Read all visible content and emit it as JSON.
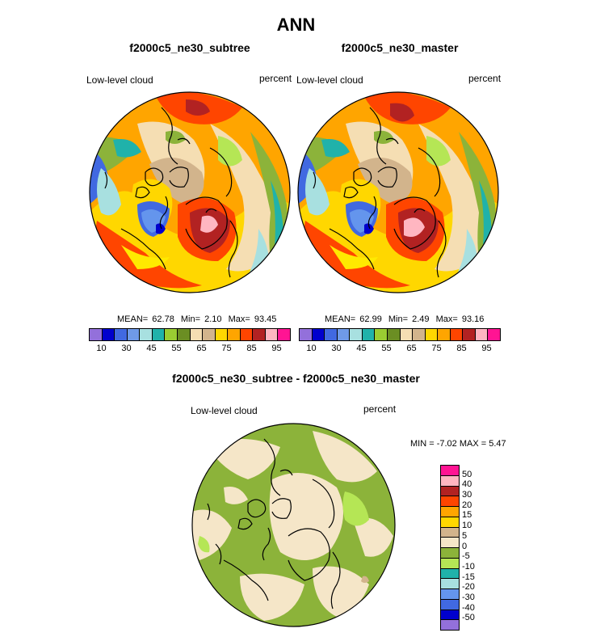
{
  "page_title": "ANN",
  "panels": [
    {
      "case_name": "f2000c5_ne30_subtree",
      "field_label": "Low-level cloud",
      "units": "percent",
      "stats": {
        "mean": "62.78",
        "min": "2.10",
        "max": "93.45"
      }
    },
    {
      "case_name": "f2000c5_ne30_master",
      "field_label": "Low-level cloud",
      "units": "percent",
      "stats": {
        "mean": "62.99",
        "min": "2.49",
        "max": "93.16"
      }
    }
  ],
  "stat_labels": {
    "mean": "MEAN=",
    "min": "Min=",
    "max": "Max="
  },
  "main_colorbar": {
    "colors": [
      "#9370db",
      "#0000cd",
      "#4169e1",
      "#6f9ae8",
      "#a8e0e0",
      "#20b2aa",
      "#9acd32",
      "#6b8e23",
      "#f5deb3",
      "#d2b48c",
      "#ffd700",
      "#ffa500",
      "#ff4500",
      "#b22222",
      "#ffb6c1",
      "#ff1493"
    ],
    "tick_labels": [
      "10",
      "30",
      "45",
      "55",
      "65",
      "75",
      "85",
      "95"
    ]
  },
  "diff_panel": {
    "title": "f2000c5_ne30_subtree - f2000c5_ne30_master",
    "field_label": "Low-level cloud",
    "units": "percent",
    "min_max_text": "MIN = -7.02 MAX =  5.47"
  },
  "diff_colorbar": {
    "colors": [
      "#ff1493",
      "#ffb6c1",
      "#b22222",
      "#ff4500",
      "#ffa500",
      "#ffd700",
      "#d2b48c",
      "#f5e6c8",
      "#8cb33a",
      "#b5e655",
      "#20b2aa",
      "#a8e0e0",
      "#6495ed",
      "#4169e1",
      "#0000cd",
      "#9370db"
    ],
    "tick_labels": [
      "50",
      "40",
      "30",
      "20",
      "15",
      "10",
      "5",
      "0",
      "-5",
      "-10",
      "-15",
      "-20",
      "-30",
      "-40",
      "-50"
    ]
  },
  "map_colors": {
    "orange": "#ffa500",
    "darkorange": "#ff7f00",
    "red": "#ff4500",
    "darkred": "#b22222",
    "pink": "#ffb6c1",
    "gold": "#ffd700",
    "yellow": "#ffea00",
    "tan": "#d2b48c",
    "wheat": "#f5deb3",
    "olive": "#8cb33a",
    "lime": "#b5e655",
    "teal": "#20b2aa",
    "cyan": "#a8e0e0",
    "blue": "#4169e1",
    "navy": "#0000cd",
    "cornflower": "#6495ed",
    "diff_base": "#8cb33a",
    "diff_pale": "#f5e6c8",
    "diff_lime": "#b5e655",
    "diff_tan": "#d2b48c",
    "coast": "#000000"
  }
}
